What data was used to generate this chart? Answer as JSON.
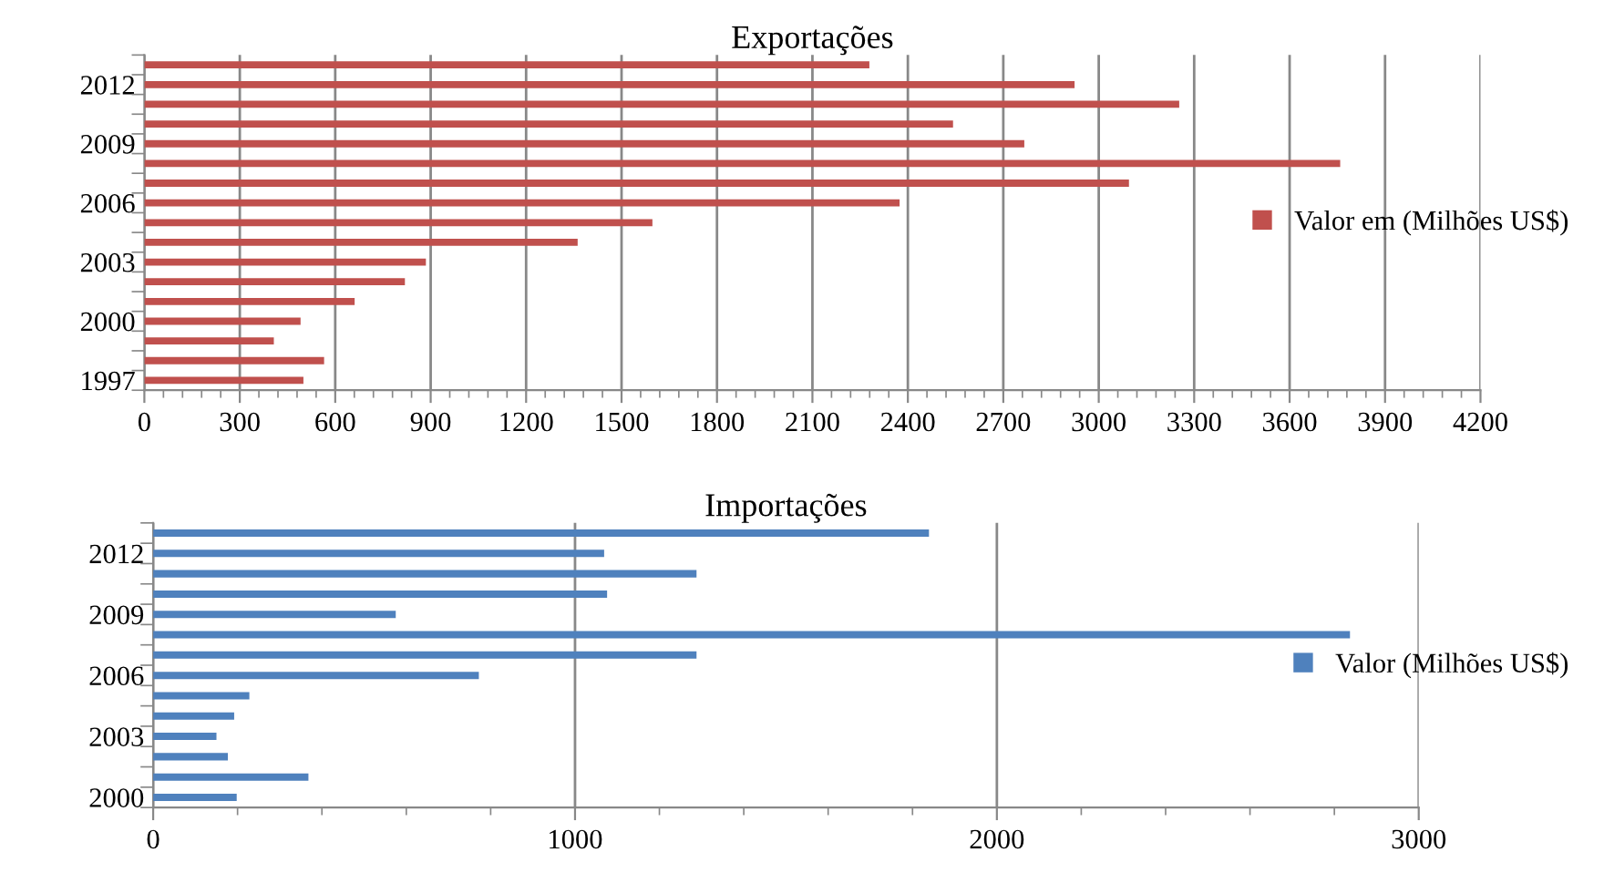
{
  "chart_data": [
    {
      "type": "bar",
      "orientation": "horizontal",
      "title": "Exportações",
      "categories": [
        null,
        "2012",
        null,
        null,
        "2009",
        null,
        null,
        "2006",
        null,
        null,
        "2003",
        null,
        null,
        "2000",
        null,
        null,
        "1997"
      ],
      "series": [
        {
          "name": "Valor em (Milhões US$)",
          "color": "#c0504d",
          "values": [
            2279,
            2924,
            3253,
            2542,
            2766,
            3759,
            3095,
            2374,
            1597,
            1362,
            885,
            819,
            661,
            491,
            407,
            565,
            500
          ]
        }
      ],
      "xlim": [
        0,
        4200
      ],
      "xticks": [
        0,
        300,
        600,
        900,
        1200,
        1500,
        1800,
        2100,
        2400,
        2700,
        3000,
        3300,
        3600,
        3900,
        4200
      ],
      "grid": "x",
      "legend": "right"
    },
    {
      "type": "bar",
      "orientation": "horizontal",
      "title": "Importações",
      "categories": [
        null,
        "2012",
        null,
        null,
        "2009",
        null,
        null,
        "2006",
        null,
        null,
        "2003",
        null,
        null,
        "2000"
      ],
      "series": [
        {
          "name": "Valor (Milhões US$)",
          "color": "#4f81bd",
          "values": [
            1839,
            1069,
            1288,
            1076,
            575,
            2837,
            1288,
            772,
            228,
            192,
            150,
            177,
            368,
            198
          ]
        }
      ],
      "xlim": [
        0,
        3000
      ],
      "xticks": [
        0,
        1000,
        2000,
        3000
      ],
      "grid": "x",
      "legend": "right"
    }
  ]
}
